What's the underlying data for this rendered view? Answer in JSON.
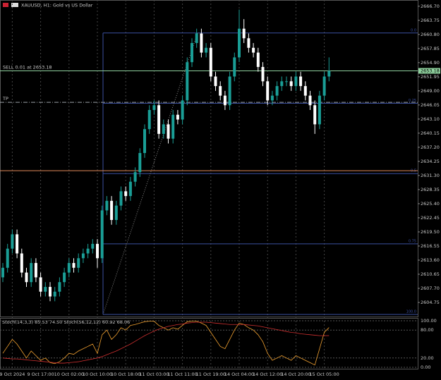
{
  "chart_data": {
    "type": "candlestick",
    "title": "XAUUSD, H1: Gold vs US Dollar",
    "x": [
      null,
      null,
      "9 Oct 2024",
      null,
      null,
      null,
      null,
      null,
      "9 Oct 17:00",
      null,
      null,
      null,
      null,
      null,
      "10 Oct 02:00",
      null,
      null,
      null,
      null,
      null,
      "10 Oct 10:00",
      null,
      null,
      null,
      null,
      null,
      "10 Oct 18:00",
      null,
      null,
      null,
      null,
      null,
      "11 Oct 03:00",
      null,
      null,
      null,
      null,
      null,
      "11 Oct 11:00",
      null,
      null,
      null,
      null,
      null,
      "11 Oct 19:00",
      null,
      null,
      null,
      null,
      null,
      "14 Oct 04:00",
      null,
      null,
      null,
      null,
      null,
      "14 Oct 12:00",
      null,
      null,
      null,
      null,
      null,
      "14 Oct 20:00",
      null,
      null,
      null,
      null,
      null,
      "15 Oct 05:00",
      null
    ],
    "open": [
      2610,
      2612,
      2616,
      2619,
      2615,
      2611,
      2609,
      2613,
      2610,
      2607,
      2608,
      2606,
      2607,
      2609,
      2611,
      2613,
      2612,
      2614,
      2615,
      2616,
      2617,
      2614,
      2624,
      2626,
      2622,
      2625,
      2628,
      2627,
      2630,
      2632,
      2636,
      2641,
      2645,
      2646,
      2640,
      2642,
      2639,
      2644,
      2643,
      2647,
      2655,
      2659,
      2661,
      2657,
      2658,
      2652,
      2650,
      2648,
      2646,
      2652,
      2656,
      2662,
      2660,
      2658,
      2657,
      2654,
      2651,
      2647,
      2648,
      2650,
      2651,
      2651,
      2650,
      2652,
      2650,
      2648,
      2646,
      2642,
      2648,
      2652
    ],
    "high": [
      2613,
      2617,
      2620,
      2620,
      2616,
      2612,
      2614,
      2614,
      2611,
      2609,
      2609,
      2608,
      2610,
      2612,
      2614,
      2614,
      2615,
      2616,
      2617,
      2618,
      2618,
      2625,
      2627,
      2627,
      2626,
      2629,
      2629,
      2631,
      2633,
      2637,
      2642,
      2646,
      2647,
      2647,
      2643,
      2643,
      2645,
      2645,
      2648,
      2656,
      2660,
      2662,
      2662,
      2659,
      2659,
      2653,
      2651,
      2649,
      2653,
      2657,
      2666,
      2664,
      2661,
      2659,
      2658,
      2655,
      2652,
      2649,
      2651,
      2652,
      2652,
      2652,
      2653,
      2653,
      2651,
      2649,
      2647,
      2649,
      2653,
      2656
    ],
    "low": [
      2609,
      2611,
      2615,
      2614,
      2610,
      2608,
      2608,
      2609,
      2606,
      2606,
      2605,
      2605,
      2606,
      2608,
      2610,
      2611,
      2611,
      2613,
      2614,
      2615,
      2612,
      2613,
      2623,
      2621,
      2621,
      2624,
      2626,
      2626,
      2629,
      2631,
      2635,
      2640,
      2644,
      2639,
      2639,
      2638,
      2638,
      2642,
      2642,
      2646,
      2654,
      2658,
      2656,
      2656,
      2651,
      2649,
      2647,
      2645,
      2645,
      2651,
      2655,
      2659,
      2657,
      2656,
      2653,
      2650,
      2646,
      2646,
      2647,
      2649,
      2650,
      2649,
      2649,
      2649,
      2647,
      2645,
      2640,
      2641,
      2647,
      2651
    ],
    "close": [
      2612,
      2616,
      2619,
      2615,
      2611,
      2609,
      2613,
      2610,
      2607,
      2608,
      2606,
      2607,
      2609,
      2611,
      2613,
      2612,
      2614,
      2615,
      2616,
      2617,
      2614,
      2624,
      2626,
      2622,
      2625,
      2628,
      2627,
      2630,
      2632,
      2636,
      2641,
      2645,
      2646,
      2640,
      2642,
      2639,
      2644,
      2643,
      2647,
      2655,
      2659,
      2661,
      2657,
      2658,
      2652,
      2650,
      2648,
      2646,
      2652,
      2656,
      2662,
      2660,
      2658,
      2657,
      2654,
      2651,
      2647,
      2648,
      2650,
      2651,
      2651,
      2650,
      2652,
      2650,
      2648,
      2646,
      2642,
      2648,
      2652,
      2653.18
    ],
    "up_color": "#1a9e96",
    "down_color": "#ffffff",
    "ylim": [
      2601.8,
      2668.0
    ],
    "yticks": [
      {
        "value": 2666.7,
        "label": "2666.70"
      },
      {
        "value": 2663.75,
        "label": "2663.75"
      },
      {
        "value": 2660.8,
        "label": "2660.80"
      },
      {
        "value": 2657.85,
        "label": "2657.85"
      },
      {
        "value": 2654.9,
        "label": "2654.90"
      },
      {
        "value": 2651.95,
        "label": "2651.95"
      },
      {
        "value": 2649.0,
        "label": "2649.00"
      },
      {
        "value": 2646.05,
        "label": "2646.05"
      },
      {
        "value": 2643.1,
        "label": "2643.10"
      },
      {
        "value": 2640.15,
        "label": "2640.15"
      },
      {
        "value": 2637.2,
        "label": "2637.20"
      },
      {
        "value": 2634.25,
        "label": "2634.25"
      },
      {
        "value": 2631.3,
        "label": "2631.30"
      },
      {
        "value": 2628.35,
        "label": "2628.35"
      },
      {
        "value": 2625.4,
        "label": "2625.40"
      },
      {
        "value": 2622.45,
        "label": "2622.45"
      },
      {
        "value": 2619.5,
        "label": "2619.50"
      },
      {
        "value": 2616.55,
        "label": "2616.55"
      },
      {
        "value": 2613.6,
        "label": "2613.60"
      },
      {
        "value": 2610.65,
        "label": "2610.65"
      },
      {
        "value": 2607.7,
        "label": "2607.70"
      },
      {
        "value": 2604.75,
        "label": "2604.75"
      }
    ],
    "bid": 2653.18,
    "order": {
      "label": "SELL 0.01 at 2653.18",
      "value": 2653.18,
      "color": "#8fd19e"
    },
    "tp": {
      "label": "TP",
      "value": 2646.6,
      "color": "#9aa0a6"
    },
    "alert_line": {
      "value": 2632.3,
      "color": "#e08a5a"
    },
    "fib": {
      "color": "#3a4fa0",
      "levels": [
        {
          "label": "0.0",
          "value": 2661.1
        },
        {
          "label": "0.25",
          "value": 2646.4
        },
        {
          "label": "0.5",
          "value": 2631.7
        },
        {
          "label": "0.75",
          "value": 2617.0
        },
        {
          "label": "100.0",
          "value": 2602.25
        }
      ]
    },
    "indicator": {
      "title": "Stoch(14,3,3) 85.53 74.50 Stoch(56,12,12) 60.92 68.06",
      "ylim": [
        0,
        100
      ],
      "yticks": [
        {
          "value": 100,
          "label": "100.00"
        },
        {
          "value": 80,
          "label": "80.00"
        },
        {
          "value": 20,
          "label": "20.00"
        },
        {
          "value": 0,
          "label": "0.00"
        }
      ],
      "series": [
        {
          "color": "#f0a030",
          "values": [
            30,
            45,
            60,
            50,
            35,
            20,
            35,
            25,
            15,
            20,
            10,
            8,
            12,
            20,
            30,
            28,
            35,
            40,
            45,
            50,
            30,
            70,
            80,
            60,
            70,
            85,
            80,
            90,
            92,
            95,
            98,
            99,
            99,
            90,
            85,
            80,
            85,
            82,
            90,
            98,
            99,
            99,
            95,
            90,
            75,
            60,
            45,
            40,
            60,
            80,
            95,
            92,
            85,
            80,
            70,
            55,
            30,
            15,
            20,
            25,
            20,
            15,
            25,
            20,
            15,
            10,
            5,
            40,
            75,
            85.53
          ]
        },
        {
          "color": "#d03030",
          "values": [
            20,
            19,
            18,
            18,
            17,
            16,
            15,
            14,
            13,
            12,
            11,
            10,
            9,
            9,
            10,
            11,
            12,
            14,
            16,
            18,
            20,
            23,
            27,
            31,
            35,
            40,
            45,
            50,
            56,
            62,
            68,
            73,
            78,
            82,
            85,
            88,
            90,
            92,
            93,
            95,
            96,
            97,
            97,
            97,
            96,
            95,
            94,
            93,
            92,
            92,
            92,
            92,
            91,
            90,
            89,
            87,
            85,
            83,
            81,
            79,
            77,
            75,
            74,
            72,
            71,
            70,
            69,
            68,
            68,
            68.06
          ]
        }
      ]
    }
  }
}
